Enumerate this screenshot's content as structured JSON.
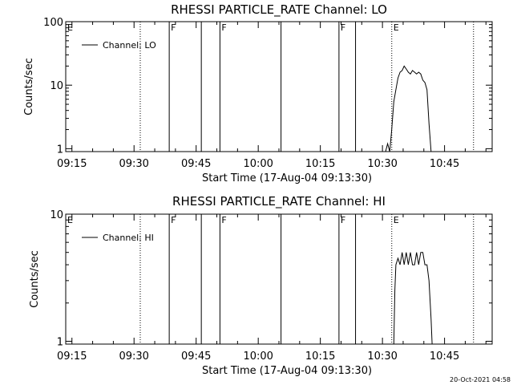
{
  "footer": {
    "timestamp": "20-Oct-2021 04:58"
  },
  "chart_data": [
    {
      "type": "line",
      "title": "RHESSI PARTICLE_RATE Channel: LO",
      "xlabel": "Start Time (17-Aug-04 09:13:30)",
      "ylabel": "Counts/sec",
      "yscale": "log",
      "xlim": [
        "09:13:30",
        "10:56:30"
      ],
      "ylim": [
        0.9,
        100
      ],
      "xticks": [
        "09:15",
        "09:30",
        "09:45",
        "10:00",
        "10:15",
        "10:30",
        "10:45"
      ],
      "yticks": [
        {
          "value": 1,
          "label": "1"
        },
        {
          "value": 10,
          "label": "10"
        },
        {
          "value": 100,
          "label": "100"
        }
      ],
      "legend": {
        "position": "top-left",
        "entries": [
          "Channel: LO"
        ]
      },
      "markers": [
        {
          "time": "09:13:30",
          "label": "E",
          "style": "none"
        },
        {
          "time": "09:31:30",
          "label": "",
          "style": "dotted"
        },
        {
          "time": "09:38:30",
          "label": "F",
          "style": "solid"
        },
        {
          "time": "09:46:15",
          "label": "",
          "style": "solid"
        },
        {
          "time": "09:50:45",
          "label": "F",
          "style": "solid"
        },
        {
          "time": "10:05:30",
          "label": "",
          "style": "solid"
        },
        {
          "time": "10:19:30",
          "label": "F",
          "style": "solid"
        },
        {
          "time": "10:23:30",
          "label": "",
          "style": "solid"
        },
        {
          "time": "10:32:15",
          "label": "E",
          "style": "dotted"
        },
        {
          "time": "10:52:00",
          "label": "",
          "style": "dotted"
        }
      ],
      "series": [
        {
          "name": "Channel: LO",
          "x": [
            "10:30:45",
            "10:31:15",
            "10:31:45",
            "10:32:15",
            "10:32:45",
            "10:33:15",
            "10:33:45",
            "10:34:15",
            "10:34:45",
            "10:35:15",
            "10:35:45",
            "10:36:15",
            "10:36:45",
            "10:37:15",
            "10:37:45",
            "10:38:15",
            "10:38:45",
            "10:39:15",
            "10:39:45",
            "10:40:15",
            "10:40:45",
            "10:41:15",
            "10:41:45"
          ],
          "y": [
            0.9,
            1.2,
            0.9,
            2.0,
            5.5,
            8.5,
            13,
            16,
            17,
            20,
            18,
            16,
            15,
            17,
            16,
            15,
            16,
            15,
            12,
            11,
            8.5,
            2.5,
            0.9
          ]
        }
      ]
    },
    {
      "type": "line",
      "title": "RHESSI PARTICLE_RATE Channel: HI",
      "xlabel": "Start Time (17-Aug-04 09:13:30)",
      "ylabel": "Counts/sec",
      "yscale": "log",
      "xlim": [
        "09:13:30",
        "10:56:30"
      ],
      "ylim": [
        0.95,
        10
      ],
      "xticks": [
        "09:15",
        "09:30",
        "09:45",
        "10:00",
        "10:15",
        "10:30",
        "10:45"
      ],
      "yticks": [
        {
          "value": 1,
          "label": "1"
        },
        {
          "value": 10,
          "label": "10"
        }
      ],
      "legend": {
        "position": "top-left",
        "entries": [
          "Channel: HI"
        ]
      },
      "markers": [
        {
          "time": "09:13:30",
          "label": "E",
          "style": "none"
        },
        {
          "time": "09:31:30",
          "label": "",
          "style": "dotted"
        },
        {
          "time": "09:38:30",
          "label": "F",
          "style": "solid"
        },
        {
          "time": "09:46:15",
          "label": "",
          "style": "solid"
        },
        {
          "time": "09:50:45",
          "label": "F",
          "style": "solid"
        },
        {
          "time": "10:05:30",
          "label": "",
          "style": "solid"
        },
        {
          "time": "10:19:30",
          "label": "F",
          "style": "solid"
        },
        {
          "time": "10:23:30",
          "label": "",
          "style": "solid"
        },
        {
          "time": "10:32:15",
          "label": "E",
          "style": "dotted"
        },
        {
          "time": "10:52:00",
          "label": "",
          "style": "dotted"
        }
      ],
      "series": [
        {
          "name": "Channel: HI",
          "x": [
            "10:32:45",
            "10:33:00",
            "10:33:15",
            "10:33:45",
            "10:34:15",
            "10:34:45",
            "10:35:15",
            "10:35:45",
            "10:36:15",
            "10:36:45",
            "10:37:15",
            "10:37:45",
            "10:38:15",
            "10:38:45",
            "10:39:15",
            "10:39:45",
            "10:40:15",
            "10:40:45",
            "10:41:15",
            "10:41:45",
            "10:42:00"
          ],
          "y": [
            0.95,
            2.5,
            4.0,
            4.5,
            4.0,
            5.0,
            4.0,
            5.0,
            4.0,
            5.0,
            4.0,
            4.0,
            5.0,
            4.0,
            5.0,
            5.0,
            4.0,
            4.0,
            3.0,
            1.5,
            0.95
          ]
        }
      ]
    }
  ]
}
